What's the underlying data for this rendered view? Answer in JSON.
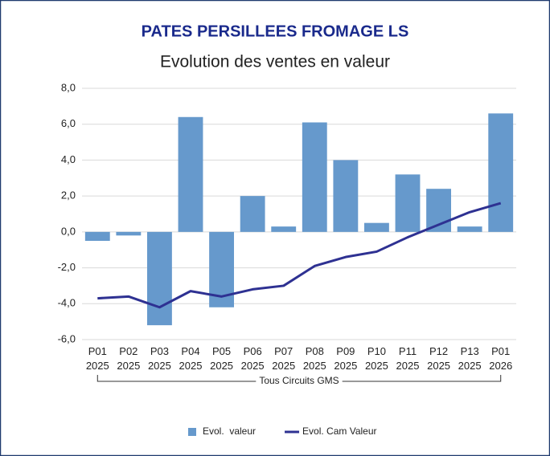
{
  "chart_data": {
    "type": "bar_line",
    "title": "PATES PERSILLEES FROMAGE LS",
    "subtitle": "Evolution des ventes en valeur",
    "categories": [
      [
        "P01",
        "2025"
      ],
      [
        "P02",
        "2025"
      ],
      [
        "P03",
        "2025"
      ],
      [
        "P04",
        "2025"
      ],
      [
        "P05",
        "2025"
      ],
      [
        "P06",
        "2025"
      ],
      [
        "P07",
        "2025"
      ],
      [
        "P08",
        "2025"
      ],
      [
        "P09",
        "2025"
      ],
      [
        "P10",
        "2025"
      ],
      [
        "P11",
        "2025"
      ],
      [
        "P12",
        "2025"
      ],
      [
        "P13",
        "2025"
      ],
      [
        "P01",
        "2026"
      ]
    ],
    "group_label": "Tous Circuits GMS",
    "series": [
      {
        "name": "Evol.  valeur",
        "type": "bar",
        "color": "#6699cc",
        "values": [
          -0.5,
          -0.2,
          -5.2,
          6.4,
          -4.2,
          2.0,
          0.3,
          6.1,
          4.0,
          0.5,
          3.2,
          2.4,
          0.3,
          6.6
        ]
      },
      {
        "name": "Evol. Cam Valeur",
        "type": "line",
        "color": "#2e3192",
        "values": [
          -3.7,
          -3.6,
          -4.2,
          -3.3,
          -3.6,
          -3.2,
          -3.0,
          -1.9,
          -1.4,
          -1.1,
          -0.3,
          0.4,
          1.1,
          1.6
        ]
      }
    ],
    "ylim": [
      -6,
      8
    ],
    "yticks": [
      {
        "value": -6,
        "label": "-6,0"
      },
      {
        "value": -4,
        "label": "-4,0"
      },
      {
        "value": -2,
        "label": "-2,0"
      },
      {
        "value": 0,
        "label": "0,0"
      },
      {
        "value": 2,
        "label": "2,0"
      },
      {
        "value": 4,
        "label": "4,0"
      },
      {
        "value": 6,
        "label": "6,0"
      },
      {
        "value": 8,
        "label": "8,0"
      }
    ],
    "grid": true,
    "legend": "bottom"
  }
}
